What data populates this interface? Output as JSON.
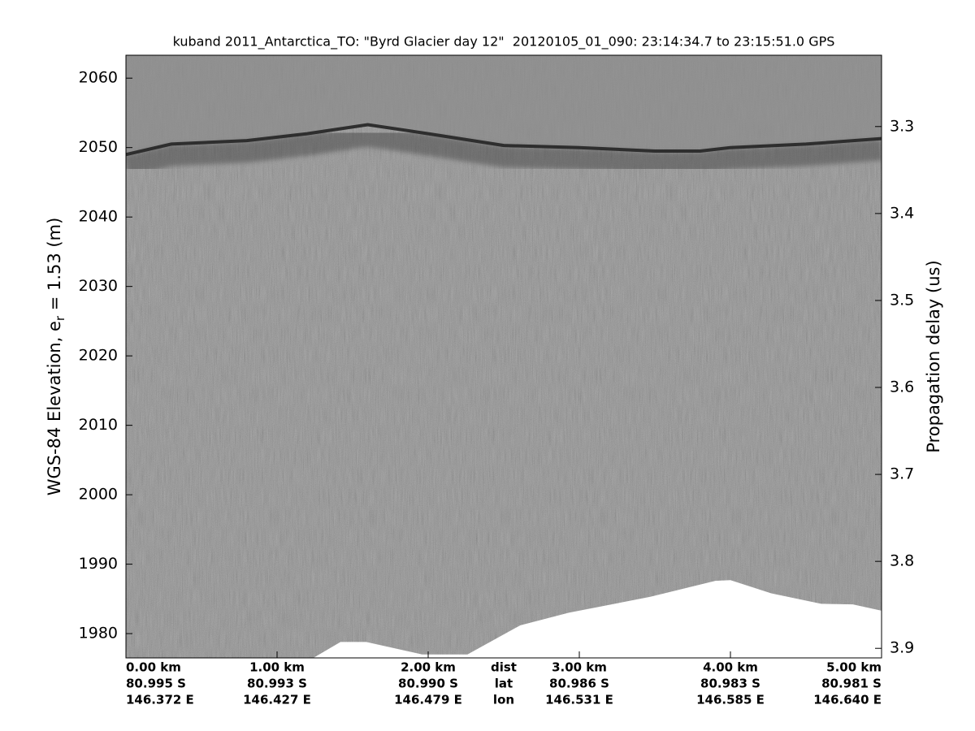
{
  "chart_data": {
    "type": "echogram",
    "title": "kuband 2011_Antarctica_TO: \"Byrd Glacier day 12\"  20120105_01_090: 23:14:34.7 to 23:15:51.0 GPS",
    "ylabel": [
      "WGS-84 Elevation, e",
      "r",
      " = 1.53 (m)"
    ],
    "y2label": "Propagation delay (us)",
    "xlim": [
      0,
      5
    ],
    "xticks": [
      {
        "value": 0,
        "label": "0.00 km"
      },
      {
        "value": 1,
        "label": "1.00 km"
      },
      {
        "value": 2,
        "label": "2.00 km"
      },
      {
        "value": 3,
        "label": "3.00 km"
      },
      {
        "value": 4,
        "label": "4.00 km"
      },
      {
        "value": 5,
        "label": "5.00 km"
      }
    ],
    "lat_labels": [
      "80.995 S",
      "80.993 S",
      "80.990 S",
      "80.986 S",
      "80.983 S",
      "80.981 S"
    ],
    "lon_labels": [
      "146.372 E",
      "146.427 E",
      "146.479 E",
      "146.531 E",
      "146.585 E",
      "146.640 E"
    ],
    "row_labels": [
      "dist",
      "lat",
      "lon"
    ],
    "ylim": [
      1976.5,
      2063.3
    ],
    "yticks": [
      1980,
      1990,
      2000,
      2010,
      2020,
      2030,
      2040,
      2050,
      2060
    ],
    "y2lim": [
      3.218,
      3.911
    ],
    "y2ticks": [
      3.3,
      3.4,
      3.5,
      3.6,
      3.7,
      3.8,
      3.9
    ],
    "surface": {
      "color": "#2e2e2e",
      "x": [
        0,
        0.3,
        0.8,
        1.2,
        1.6,
        2.0,
        2.5,
        3.0,
        3.5,
        3.8,
        4.0,
        4.5,
        5.0
      ],
      "values": [
        2049,
        2050.5,
        2051,
        2052,
        2053.3,
        2052,
        2050.3,
        2050,
        2049.5,
        2049.5,
        2050,
        2050.5,
        2051.3
      ]
    },
    "data_floor": {
      "color": "#ffffff",
      "x": [
        1.24,
        1.42,
        1.59,
        1.96,
        2.26,
        2.61,
        2.93,
        3.47,
        3.9,
        4.0,
        4.27,
        4.6,
        4.81,
        5.0
      ],
      "values": [
        1976.5,
        1978.8,
        1978.8,
        1977,
        1977,
        1981.2,
        1983,
        1985.3,
        1987.6,
        1987.7,
        1985.8,
        1984.3,
        1984.2,
        1983.3
      ]
    }
  }
}
